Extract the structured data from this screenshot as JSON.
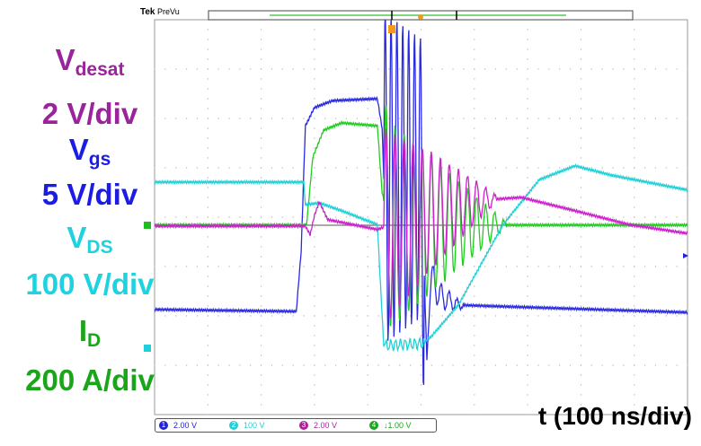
{
  "header": {
    "brand": "Tek",
    "mode": "PreVu"
  },
  "labels": {
    "vdesat_main": "V",
    "vdesat_sub": "desat",
    "vdesat_scale": "2 V/div",
    "vgs_main": "V",
    "vgs_sub": "gs",
    "vgs_scale": "5 V/div",
    "vds_main": "V",
    "vds_sub": "DS",
    "vds_scale": "100 V/div",
    "id_main": "I",
    "id_sub": "D",
    "id_scale": "200 A/div",
    "time_scale": "t (100 ns/div)"
  },
  "channels": [
    {
      "num": "1",
      "scale": "2.00 V",
      "color": "#2222dd"
    },
    {
      "num": "2",
      "scale": "100 V",
      "color": "#22cfd8"
    },
    {
      "num": "3",
      "scale": "2.00 V",
      "color": "#b0209e"
    },
    {
      "num": "4",
      "scale": "↓1.00 V",
      "color": "#18a818"
    }
  ],
  "chart_data": {
    "type": "line",
    "title": "",
    "xlabel": "t (100 ns/div)",
    "x_unit": "ns",
    "y_unit": "div",
    "xlim": [
      0,
      1000
    ],
    "ylim": [
      -4,
      4
    ],
    "grid": true,
    "series": [
      {
        "name": "Vgs",
        "color": "#2a2ae0",
        "points": [
          [
            0,
            -1.87
          ],
          [
            266,
            -1.91
          ],
          [
            275,
            -0.69
          ],
          [
            283,
            1.85
          ],
          [
            300,
            2.22
          ],
          [
            334,
            2.36
          ],
          [
            418,
            2.4
          ],
          [
            427,
            1.8
          ],
          [
            430,
            0.8
          ],
          [
            500,
            0.8
          ],
          [
            511,
            -2.87
          ],
          [
            519,
            -1.24
          ],
          [
            536,
            -1.6
          ],
          [
            553,
            -1.69
          ],
          [
            570,
            -1.78
          ],
          [
            1000,
            -1.93
          ]
        ],
        "osc": [
          {
            "t0": 430,
            "t1": 505,
            "a0": 3.4,
            "a1": 2.8,
            "period": 11
          },
          {
            "t0": 519,
            "t1": 580,
            "a0": 0.35,
            "a1": 0.05,
            "period": 15
          }
        ]
      },
      {
        "name": "ID",
        "color": "#22cc22",
        "points": [
          [
            0,
            -0.16
          ],
          [
            285,
            -0.16
          ],
          [
            297,
            1.22
          ],
          [
            317,
            1.76
          ],
          [
            351,
            1.91
          ],
          [
            418,
            1.85
          ],
          [
            427,
            0.5
          ],
          [
            440,
            -0.16
          ],
          [
            1000,
            -0.16
          ]
        ],
        "osc": [
          {
            "t0": 430,
            "t1": 660,
            "a0": 2.2,
            "a1": 0.05,
            "period": 17
          }
        ]
      },
      {
        "name": "VDS",
        "color": "#22d0d8",
        "points": [
          [
            0,
            0.71
          ],
          [
            280,
            0.71
          ],
          [
            283,
            0.25
          ],
          [
            309,
            0.29
          ],
          [
            351,
            0.13
          ],
          [
            418,
            -0.15
          ],
          [
            430,
            -2.6
          ],
          [
            502,
            -2.56
          ],
          [
            519,
            -2.42
          ],
          [
            570,
            -1.78
          ],
          [
            654,
            -0.15
          ],
          [
            722,
            0.76
          ],
          [
            789,
            1.04
          ],
          [
            857,
            0.85
          ],
          [
            1000,
            0.55
          ]
        ],
        "osc": [
          {
            "t0": 432,
            "t1": 505,
            "a0": 0.1,
            "a1": 0.1,
            "period": 9
          }
        ]
      },
      {
        "name": "Vdesat",
        "color": "#cc22cc",
        "points": [
          [
            0,
            -0.18
          ],
          [
            283,
            -0.18
          ],
          [
            292,
            -0.36
          ],
          [
            300,
            0.04
          ],
          [
            309,
            0.31
          ],
          [
            325,
            -0.05
          ],
          [
            418,
            -0.25
          ],
          [
            430,
            -0.2
          ],
          [
            519,
            0.13
          ],
          [
            620,
            0.35
          ],
          [
            688,
            0.4
          ],
          [
            789,
            0.13
          ],
          [
            890,
            -0.15
          ],
          [
            1000,
            -0.33
          ]
        ],
        "osc": [
          {
            "t0": 430,
            "t1": 640,
            "a0": 2.0,
            "a1": 0.08,
            "period": 17
          }
        ]
      }
    ]
  }
}
